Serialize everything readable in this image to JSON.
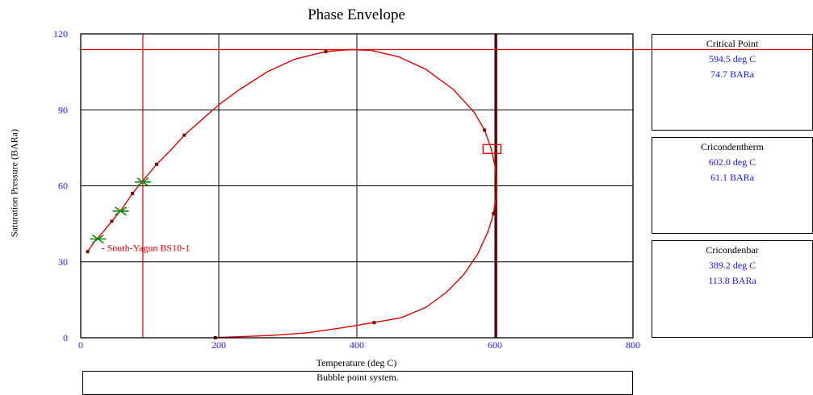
{
  "chart_data": {
    "type": "line",
    "title": "Phase Envelope",
    "xlabel": "Temperature (deg C)",
    "ylabel": "Saturation Pressure (BARa)",
    "xlim": [
      0,
      800
    ],
    "ylim": [
      0,
      120
    ],
    "xticks": [
      "0",
      "200",
      "400",
      "600",
      "800"
    ],
    "yticks": [
      "0",
      "30",
      "60",
      "90",
      "120"
    ],
    "grid": true,
    "series": [
      {
        "name": "South-Yagun BS10-1",
        "color": "#e00000",
        "values": [
          [
            10,
            34
          ],
          [
            20,
            38
          ],
          [
            30,
            41
          ],
          [
            45,
            46
          ],
          [
            60,
            51
          ],
          [
            75,
            57
          ],
          [
            90,
            62
          ],
          [
            110,
            68.5
          ],
          [
            130,
            74
          ],
          [
            150,
            80
          ],
          [
            175,
            86
          ],
          [
            200,
            92
          ],
          [
            230,
            98
          ],
          [
            270,
            105
          ],
          [
            310,
            110
          ],
          [
            355,
            113
          ],
          [
            389.2,
            113.8
          ],
          [
            420,
            113.5
          ],
          [
            460,
            111
          ],
          [
            500,
            106
          ],
          [
            540,
            98
          ],
          [
            570,
            89
          ],
          [
            585,
            82
          ],
          [
            594.5,
            74.7
          ],
          [
            600,
            68
          ],
          [
            602,
            61.1
          ],
          [
            601,
            55
          ],
          [
            598,
            49
          ],
          [
            590,
            42
          ],
          [
            575,
            33
          ],
          [
            555,
            25
          ],
          [
            530,
            18
          ],
          [
            500,
            12
          ],
          [
            465,
            8
          ],
          [
            425,
            6
          ],
          [
            380,
            4
          ],
          [
            330,
            2
          ],
          [
            280,
            1
          ],
          [
            230,
            0.4
          ],
          [
            195,
            0.1
          ]
        ],
        "markers": [
          [
            10,
            34
          ],
          [
            45,
            46
          ],
          [
            75,
            57
          ],
          [
            110,
            68.5
          ],
          [
            150,
            80
          ],
          [
            355,
            113
          ],
          [
            585,
            82
          ],
          [
            598,
            49
          ],
          [
            425,
            6
          ],
          [
            195,
            0
          ]
        ]
      }
    ],
    "crosshair": {
      "x": 90,
      "y": 113.8
    },
    "cricondentherm_line_x": 602,
    "critical_point_box": {
      "x": 594.5,
      "y": 74.7
    },
    "star_markers": [
      [
        25,
        39
      ],
      [
        58,
        50
      ],
      [
        90,
        61.5
      ]
    ],
    "series_label": "South-Yagun BS10-1",
    "label_anchor": {
      "x": 30,
      "y": 35.5
    }
  },
  "panels": {
    "critical_point": {
      "title": "Critical Point",
      "temp": "594.5  deg C",
      "pressure": "74.7  BARa"
    },
    "cricondentherm": {
      "title": "Cricondentherm",
      "temp": "602.0  deg C",
      "pressure": "61.1  BARa"
    },
    "cricondenbar": {
      "title": "Cricondenbar",
      "temp": "389.2  deg C",
      "pressure": "113.8  BARa"
    }
  },
  "status": {
    "text": "Bubble point system."
  }
}
